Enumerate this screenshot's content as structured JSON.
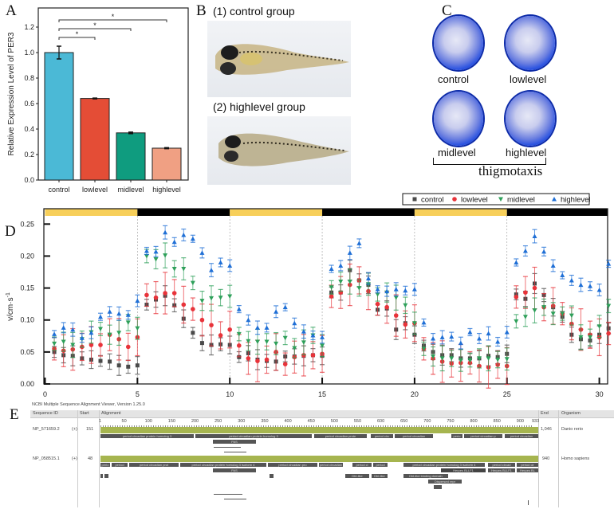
{
  "panel_letters": {
    "a": "A",
    "b": "B",
    "c": "C",
    "d": "D",
    "e": "E"
  },
  "panel_b": {
    "label_1": "(1) control group",
    "label_2": "(2) highlevel group"
  },
  "panel_c": {
    "labels": [
      "control",
      "lowlevel",
      "midlevel",
      "highlevel"
    ],
    "caption": "thigmotaxis"
  },
  "panel_e": {
    "title": "NCBI Multiple Sequence Alignment Viewer, Version 1.25.0",
    "columns": {
      "seq_id": "Sequence ID",
      "start": "Start",
      "alignment": "Alignment",
      "end": "End",
      "organism": "Organism"
    },
    "ruler": [
      "1",
      "50",
      "100",
      "150",
      "200",
      "250",
      "300",
      "350",
      "400",
      "450",
      "500",
      "550",
      "600",
      "650",
      "700",
      "750",
      "800",
      "850",
      "900",
      "933"
    ],
    "rows": [
      {
        "id": "NP_571659.2",
        "strand": "(+)",
        "start": "151",
        "end": "1,046",
        "organism": "Danio rerio",
        "features": [
          "period circadian protein homolog 3",
          "period circadian protein homolog 3",
          "period circadian prote",
          "period circ",
          "period circadian",
          "perio",
          "period circadian p",
          "period circadian"
        ],
        "domain": "PAS"
      },
      {
        "id": "NP_058515.1",
        "strand": "(+)",
        "start": "48",
        "end": "940",
        "organism": "Homo sapiens",
        "features": [
          "perio",
          "period",
          "period circadian prot",
          "period circadian protein homolog 3 isoform 4",
          "period circadian pro",
          "period circadian",
          "period ci",
          "period",
          "period circadian protein homolog 3 isoform 4",
          "period circad",
          "period cir"
        ],
        "domain": "PAS",
        "extra": [
          "Herpes BLLF1",
          "Herpes BLLF1",
          "Herpes BL",
          "DbI-like",
          "DbI-like",
          "Dbl-like binding domain",
          "Dispersed repr"
        ]
      }
    ]
  },
  "chart_data": [
    {
      "type": "bar",
      "panel": "A",
      "categories": [
        "control",
        "lowlevel",
        "midlevel",
        "highlevel"
      ],
      "values": [
        1.0,
        0.64,
        0.37,
        0.25
      ],
      "errors": [
        0.05,
        0.003,
        0.006,
        0.004
      ],
      "colors": [
        "#4bb9d6",
        "#e44d36",
        "#0f9c7f",
        "#f0a083"
      ],
      "ylabel": "Relative Expression Level of PER3",
      "xlabel": "",
      "ylim": [
        0,
        1.3
      ],
      "yticks": [
        "0.0",
        "0.2",
        "0.4",
        "0.6",
        "0.8",
        "1.0",
        "1.2"
      ],
      "significance": [
        {
          "from": "control",
          "to": "lowlevel",
          "label": "*"
        },
        {
          "from": "control",
          "to": "midlevel",
          "label": "*"
        },
        {
          "from": "control",
          "to": "highlevel",
          "label": "*"
        }
      ]
    },
    {
      "type": "scatter",
      "panel": "D",
      "ylabel": "v/cm·s",
      "ylabel_sup": "-1",
      "xlim": [
        0,
        31
      ],
      "ylim": [
        0,
        0.27
      ],
      "xticks": [
        "0",
        "5",
        "10",
        "15",
        "20",
        "25",
        "30"
      ],
      "yticks": [
        "0.00",
        "0.05",
        "0.10",
        "0.15",
        "0.20",
        "0.25"
      ],
      "light_dark_bar": [
        "light",
        "dark",
        "light",
        "dark",
        "light",
        "dark"
      ],
      "light_color": "#f7cf5a",
      "dark_color": "#000000",
      "legend_position": "top-right",
      "x": [
        0.5,
        1,
        1.5,
        2,
        2.5,
        3,
        3.5,
        4,
        4.5,
        5,
        5.5,
        6,
        6.5,
        7,
        7.5,
        8,
        8.5,
        9,
        9.5,
        10,
        10.5,
        11,
        11.5,
        12,
        12.5,
        13,
        13.5,
        14,
        14.5,
        15,
        15.5,
        16,
        16.5,
        17,
        17.5,
        18,
        18.5,
        19,
        19.5,
        20,
        20.5,
        21,
        21.5,
        22,
        22.5,
        23,
        23.5,
        24,
        24.5,
        25,
        25.5,
        26,
        26.5,
        27,
        27.5,
        28,
        28.5,
        29,
        29.5,
        30,
        30.5
      ],
      "series": [
        {
          "name": "control",
          "color": "#4a4a4a",
          "marker": "square",
          "err": 0.012,
          "values": [
            0.05,
            0.045,
            0.044,
            0.04,
            0.038,
            0.036,
            0.035,
            0.029,
            0.027,
            0.029,
            0.124,
            0.132,
            0.138,
            0.123,
            0.102,
            0.08,
            0.064,
            0.061,
            0.062,
            0.061,
            0.042,
            0.048,
            0.038,
            0.036,
            0.035,
            0.043,
            0.043,
            0.044,
            0.045,
            0.044,
            0.143,
            0.143,
            0.178,
            0.162,
            0.155,
            0.116,
            0.118,
            0.085,
            0.095,
            0.077,
            0.06,
            0.05,
            0.045,
            0.045,
            0.04,
            0.04,
            0.04,
            0.044,
            0.042,
            0.047,
            0.14,
            0.133,
            0.157,
            0.139,
            0.12,
            0.105,
            0.077,
            0.07,
            0.068,
            0.077,
            0.087
          ]
        },
        {
          "name": "lowlevel",
          "color": "#e8333a",
          "marker": "circle",
          "err": 0.025,
          "values": [
            0.055,
            0.052,
            0.054,
            0.058,
            0.061,
            0.061,
            0.077,
            0.07,
            0.058,
            0.073,
            0.139,
            0.135,
            0.142,
            0.142,
            0.124,
            0.117,
            0.1,
            0.092,
            0.076,
            0.085,
            0.06,
            0.04,
            0.036,
            0.038,
            0.05,
            0.031,
            0.042,
            0.045,
            0.045,
            0.047,
            0.137,
            0.143,
            0.155,
            0.162,
            0.145,
            0.125,
            0.12,
            0.107,
            0.093,
            0.095,
            0.055,
            0.04,
            0.035,
            0.032,
            0.033,
            0.033,
            0.028,
            0.026,
            0.03,
            0.028,
            0.136,
            0.143,
            0.15,
            0.12,
            0.122,
            0.11,
            0.094,
            0.085,
            0.077,
            0.073,
            0.079
          ]
        },
        {
          "name": "midlevel",
          "color": "#2ea05a",
          "marker": "triangle-down",
          "err": 0.015,
          "values": [
            0.063,
            0.066,
            0.061,
            0.07,
            0.081,
            0.086,
            0.077,
            0.08,
            0.096,
            0.087,
            0.2,
            0.195,
            0.201,
            0.18,
            0.18,
            0.158,
            0.13,
            0.134,
            0.135,
            0.137,
            0.078,
            0.067,
            0.066,
            0.066,
            0.063,
            0.072,
            0.056,
            0.065,
            0.076,
            0.06,
            0.151,
            0.16,
            0.16,
            0.15,
            0.156,
            0.14,
            0.143,
            0.135,
            0.123,
            0.095,
            0.055,
            0.043,
            0.04,
            0.04,
            0.037,
            0.037,
            0.04,
            0.04,
            0.038,
            0.039,
            0.098,
            0.105,
            0.115,
            0.12,
            0.11,
            0.11,
            0.107,
            0.073,
            0.073,
            0.09,
            0.122
          ]
        },
        {
          "name": "highlevel",
          "color": "#1f6fd6",
          "marker": "triangle-up",
          "err": 0.008,
          "values": [
            0.078,
            0.088,
            0.085,
            0.072,
            0.08,
            0.105,
            0.113,
            0.11,
            0.108,
            0.13,
            0.208,
            0.207,
            0.237,
            0.222,
            0.233,
            0.227,
            0.205,
            0.178,
            0.19,
            0.185,
            0.117,
            0.1,
            0.088,
            0.088,
            0.113,
            0.12,
            0.095,
            0.082,
            0.076,
            0.073,
            0.18,
            0.185,
            0.205,
            0.22,
            0.165,
            0.148,
            0.145,
            0.148,
            0.146,
            0.148,
            0.096,
            0.071,
            0.073,
            0.074,
            0.064,
            0.081,
            0.071,
            0.079,
            0.066,
            0.081,
            0.19,
            0.208,
            0.231,
            0.207,
            0.185,
            0.17,
            0.162,
            0.155,
            0.153,
            0.147,
            0.188
          ]
        }
      ]
    }
  ]
}
